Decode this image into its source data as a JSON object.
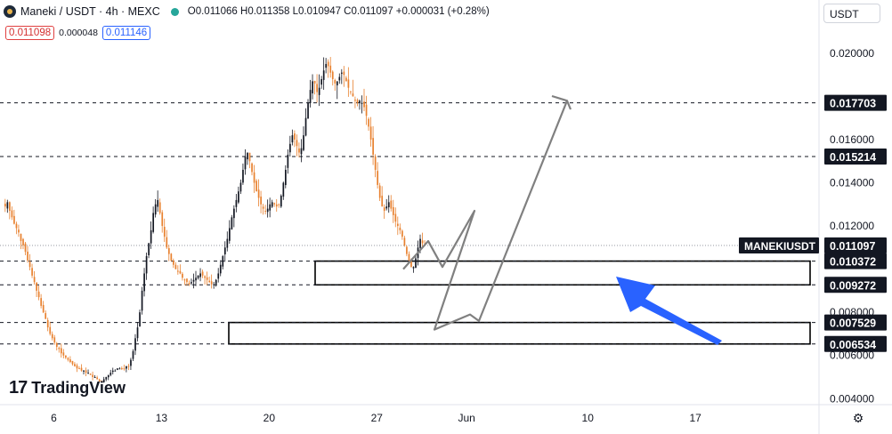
{
  "header": {
    "symbol_line": "Maneki / USDT · 4h · MEXC",
    "ohlc": "O0.011066 H0.011358 L0.010947 C0.011097 +0.000031 (+0.28%)",
    "bid": "0.011098",
    "spread": "0.000048",
    "ask": "0.011146"
  },
  "currency_button": "USDT",
  "branding": {
    "mark": "17",
    "name": "TradingView"
  },
  "colors": {
    "up": "#131722",
    "down": "#e8812f",
    "arrow": "#2962ff",
    "zone": "#000000",
    "path": "#808080",
    "accent": "#26a69a"
  },
  "chart_data": {
    "type": "candlestick",
    "timeframe": "4h",
    "ylim": [
      0.0036,
      0.0212
    ],
    "yticks": [
      "0.020000",
      "0.016000",
      "0.014000",
      "0.012000",
      "0.008000",
      "0.006000",
      "0.004000"
    ],
    "xticks": [
      "6",
      "13",
      "20",
      "27",
      "Jun",
      "10",
      "17"
    ],
    "xtick_bar_index": [
      22,
      70,
      118,
      166,
      206,
      260,
      308
    ],
    "close_series": [
      0.0129,
      0.0131,
      0.0127,
      0.0124,
      0.0121,
      0.0119,
      0.0117,
      0.0113,
      0.0111,
      0.0108,
      0.0104,
      0.0101,
      0.0097,
      0.0094,
      0.009,
      0.0087,
      0.0083,
      0.008,
      0.0077,
      0.0073,
      0.007,
      0.0068,
      0.0066,
      0.0064,
      0.0063,
      0.0061,
      0.006,
      0.0059,
      0.0058,
      0.0057,
      0.0056,
      0.0055,
      0.0054,
      0.0054,
      0.0053,
      0.0053,
      0.0052,
      0.0052,
      0.0051,
      0.005,
      0.005,
      0.0049,
      0.0048,
      0.0048,
      0.0049,
      0.005,
      0.0051,
      0.0052,
      0.0053,
      0.0053,
      0.0054,
      0.0054,
      0.0054,
      0.0054,
      0.0055,
      0.0055,
      0.0058,
      0.0062,
      0.0068,
      0.0073,
      0.008,
      0.009,
      0.0098,
      0.0106,
      0.0112,
      0.0118,
      0.0126,
      0.013,
      0.0132,
      0.0126,
      0.012,
      0.0115,
      0.011,
      0.0107,
      0.0104,
      0.0102,
      0.01,
      0.0099,
      0.0098,
      0.0096,
      0.0095,
      0.0094,
      0.0093,
      0.0094,
      0.0095,
      0.0096,
      0.0097,
      0.0098,
      0.0097,
      0.0096,
      0.0095,
      0.0094,
      0.0093,
      0.0093,
      0.0095,
      0.0098,
      0.0102,
      0.0106,
      0.011,
      0.0114,
      0.0119,
      0.0124,
      0.0128,
      0.0132,
      0.0136,
      0.014,
      0.0146,
      0.0152,
      0.0154,
      0.015,
      0.0145,
      0.014,
      0.0136,
      0.0133,
      0.013,
      0.0128,
      0.0127,
      0.0128,
      0.013,
      0.0131,
      0.013,
      0.0129,
      0.013,
      0.0134,
      0.014,
      0.0146,
      0.0153,
      0.0158,
      0.0162,
      0.016,
      0.0157,
      0.0154,
      0.0156,
      0.0162,
      0.017,
      0.0177,
      0.0183,
      0.0187,
      0.0186,
      0.0182,
      0.0184,
      0.0188,
      0.0192,
      0.0195,
      0.0194,
      0.0191,
      0.0188,
      0.0186,
      0.0187,
      0.0189,
      0.0191,
      0.019,
      0.0187,
      0.0184,
      0.0182,
      0.018,
      0.0178,
      0.0177,
      0.0178,
      0.0177,
      0.0175,
      0.0171,
      0.0166,
      0.016,
      0.0153,
      0.0146,
      0.0139,
      0.0133,
      0.0129,
      0.0127,
      0.0129,
      0.0131,
      0.0128,
      0.0125,
      0.0122,
      0.012,
      0.0118,
      0.0115,
      0.0111,
      0.0107,
      0.0104,
      0.0101,
      0.0101,
      0.0105,
      0.011,
      0.0114,
      0.0112,
      0.0111
    ],
    "price_lines": [
      {
        "value": "0.017703",
        "style": "dashed"
      },
      {
        "value": "0.015214",
        "style": "dashed"
      },
      {
        "value": "0.010372",
        "style": "dashed"
      },
      {
        "value": "0.009272",
        "style": "dashed"
      },
      {
        "value": "0.007529",
        "style": "dashed"
      },
      {
        "value": "0.006534",
        "style": "dashed"
      }
    ],
    "last_price": {
      "label": "MANEKIUSDT",
      "value": "0.011097"
    },
    "zones": [
      {
        "top": 0.010372,
        "bottom": 0.009272
      },
      {
        "top": 0.007529,
        "bottom": 0.006534
      }
    ],
    "projection_path": [
      [
        0.01,
        "start"
      ],
      [
        0.0113,
        "up"
      ],
      [
        0.0101,
        "down"
      ],
      [
        0.0127,
        "up"
      ],
      [
        0.0072,
        "low"
      ],
      [
        0.0079,
        "bounce"
      ],
      [
        0.0076,
        "dip"
      ],
      [
        0.0178,
        "target"
      ]
    ]
  }
}
